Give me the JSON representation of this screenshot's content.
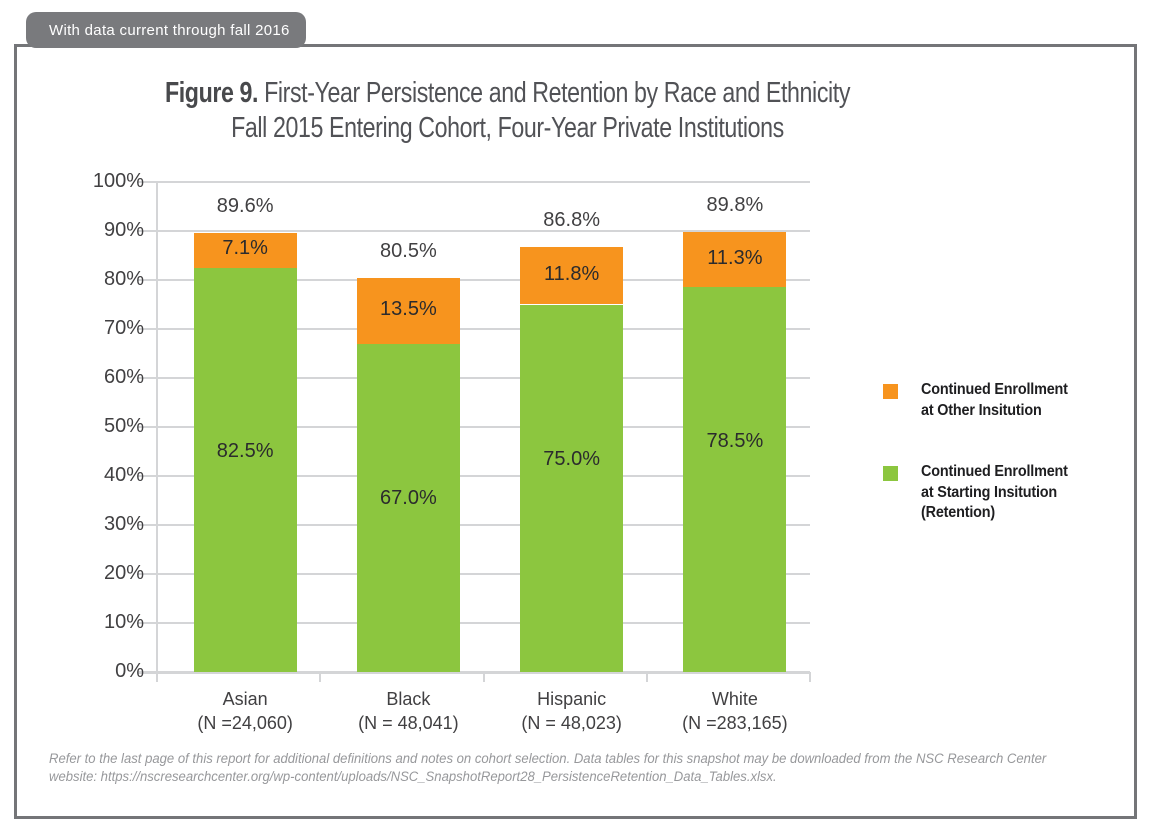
{
  "banner": {
    "label": "With data current through fall 2016"
  },
  "title": {
    "prefix": "Figure 9.",
    "line1": "First-Year Persistence and Retention by Race and Ethnicity",
    "line2": "Fall 2015 Entering Cohort, Four-Year Private Institutions"
  },
  "chart_data": {
    "type": "bar",
    "stacked": true,
    "title": "Figure 9. First-Year Persistence and Retention by Race and Ethnicity — Fall 2015 Entering Cohort, Four-Year Private Institutions",
    "categories": [
      "Asian",
      "Black",
      "Hispanic",
      "White"
    ],
    "category_sublabels": [
      "(N =24,060)",
      "(N = 48,041)",
      "(N = 48,023)",
      "(N =283,165)"
    ],
    "series": [
      {
        "name": "Continued Enrollment at Starting Insitution (Retention)",
        "color": "#8cc63f",
        "values": [
          82.5,
          67.0,
          75.0,
          78.5
        ],
        "labels": [
          "82.5%",
          "67.0%",
          "75.0%",
          "78.5%"
        ]
      },
      {
        "name": "Continued Enrollment at Other Insitution",
        "color": "#f7941e",
        "values": [
          7.1,
          13.5,
          11.8,
          11.3
        ],
        "labels": [
          "7.1%",
          "13.5%",
          "11.8%",
          "11.3%"
        ]
      }
    ],
    "totals": [
      89.6,
      80.5,
      86.8,
      89.8
    ],
    "total_labels": [
      "89.6%",
      "80.5%",
      "86.8%",
      "89.8%"
    ],
    "xlabel": "",
    "ylabel": "",
    "ylim": [
      0,
      100
    ],
    "ytick_step": 10,
    "ytick_labels": [
      "0%",
      "10%",
      "20%",
      "30%",
      "40%",
      "50%",
      "60%",
      "70%",
      "80%",
      "90%",
      "100%"
    ],
    "grid": true,
    "legend_position": "right",
    "layout_hints": {
      "green_label_y_pct": [
        44.9,
        35.3,
        43.3,
        46.9
      ]
    }
  },
  "legend": {
    "items": [
      {
        "color": "#f7941e",
        "label_lines": [
          "Continued Enrollment",
          "at Other Insitution"
        ]
      },
      {
        "color": "#8cc63f",
        "label_lines": [
          "Continued Enrollment",
          "at Starting Insitution",
          "(Retention)"
        ]
      }
    ]
  },
  "footnote": {
    "line1": "Refer to the last page of this report for additional definitions and notes on cohort selection. Data tables for this snapshot may be downloaded from the NSC Research Center",
    "line2": "website: https://nscresearchcenter.org/wp-content/uploads/NSC_SnapshotReport28_PersistenceRetention_Data_Tables.xlsx."
  },
  "colors": {
    "orange": "#f7941e",
    "green": "#8cc63f",
    "frame_gray": "#747578",
    "banner_gray": "#797a7d",
    "grid_gray": "#d4d5d7",
    "text_dark": "#414042",
    "text_light": "#97989b"
  }
}
